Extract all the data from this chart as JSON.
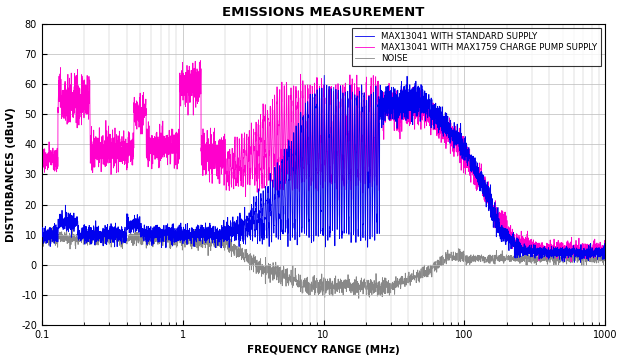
{
  "title": "EMISSIONS MEASUREMENT",
  "xlabel": "FREQUENCY RANGE (MHz)",
  "ylabel": "DISTURBANCES (dBuV)",
  "xlim": [
    0.1,
    1000
  ],
  "ylim": [
    -20,
    80
  ],
  "yticks": [
    -20,
    -10,
    0,
    10,
    20,
    30,
    40,
    50,
    60,
    70,
    80
  ],
  "legend_labels": [
    "MAX13041 WITH STANDARD SUPPLY",
    "MAX13041 WITH MAX1759 CHARGE PUMP SUPPLY",
    "NOISE"
  ],
  "colors": {
    "blue": "#0000EE",
    "pink": "#FF00CC",
    "gray": "#888888"
  },
  "background": "#FFFFFF",
  "grid_color": "#BBBBBB"
}
